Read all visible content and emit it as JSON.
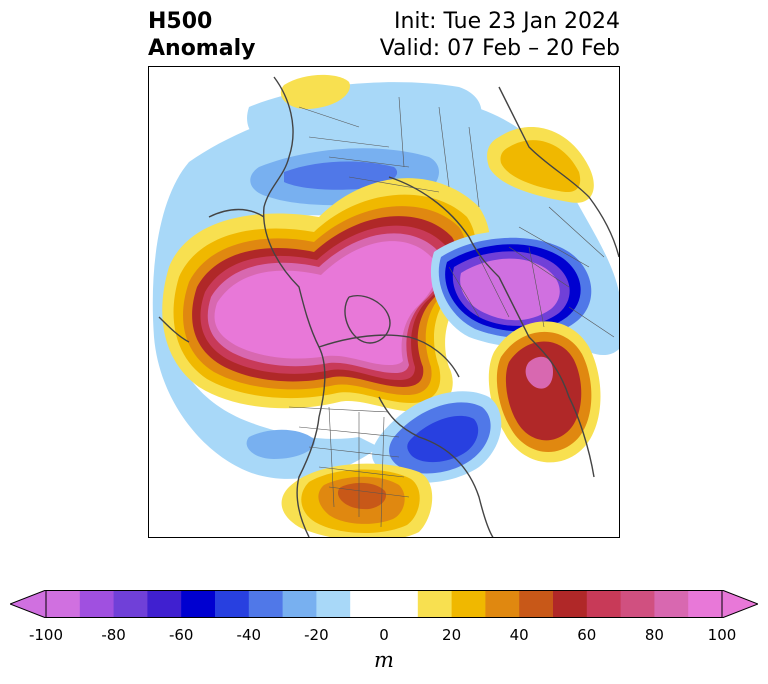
{
  "title": {
    "left_line1": "H500",
    "left_line2": "Anomaly",
    "right_line1": "Init: Tue 23 Jan 2024",
    "right_line2": "Valid: 07 Feb – 20 Feb"
  },
  "colorbar": {
    "unit": "m",
    "tick_labels": [
      "-100",
      "-80",
      "-60",
      "-40",
      "-20",
      "0",
      "20",
      "40",
      "60",
      "80",
      "100"
    ],
    "colors": [
      "#d070e0",
      "#a050e0",
      "#7040d8",
      "#4020d0",
      "#0000d0",
      "#2840e0",
      "#5078e8",
      "#78b0f0",
      "#a8d8f8",
      "#ffffff",
      "#ffffff",
      "#f8e050",
      "#f0b800",
      "#e08810",
      "#c85818",
      "#b02828",
      "#c83a58",
      "#d05080",
      "#d868b0",
      "#e878d8"
    ],
    "arrow_low": "#d070e0",
    "arrow_high": "#e878d8"
  }
}
